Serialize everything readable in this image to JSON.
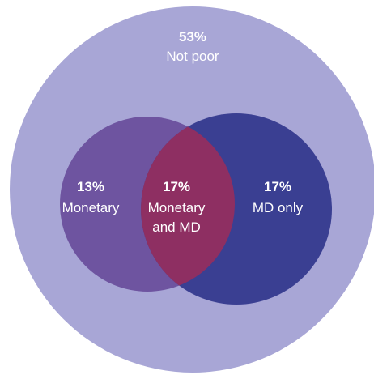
{
  "colors": {
    "not_poor": "#a8a6d6",
    "monetary": "#6e54a0",
    "md": "#3a3f92",
    "overlap": "#8e2f62",
    "text": "#ffffff"
  },
  "regions": {
    "not_poor": {
      "percent": "53%",
      "label_lines": [
        "Not poor"
      ]
    },
    "monetary": {
      "percent": "13%",
      "label_lines": [
        "Monetary"
      ]
    },
    "overlap": {
      "percent": "17%",
      "label_lines": [
        "Monetary",
        "and MD"
      ]
    },
    "md_only": {
      "percent": "17%",
      "label_lines": [
        "MD only"
      ]
    }
  }
}
